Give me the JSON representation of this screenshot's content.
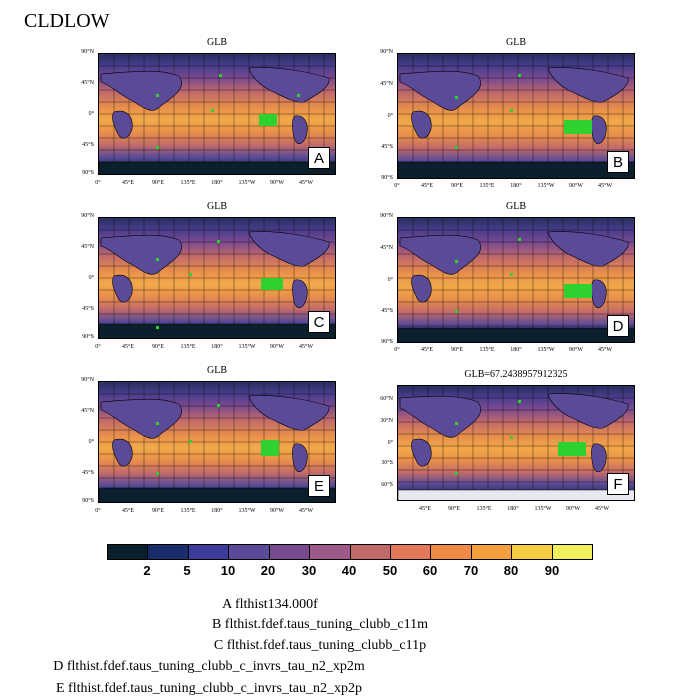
{
  "title": "CLDLOW",
  "panels": [
    {
      "title": "GLB",
      "letter": "A",
      "lat_labels": [
        "90°N",
        "45°N",
        "0°",
        "45°S",
        "90°S"
      ],
      "lon_labels": [
        "0°",
        "45°E",
        "90°E",
        "135°E",
        "180°",
        "135°W",
        "90°W",
        "45°W"
      ]
    },
    {
      "title": "GLB",
      "letter": "B",
      "lat_labels": [
        "90°N",
        "45°N",
        "0°",
        "45°S",
        "90°S"
      ],
      "lon_labels": [
        "0°",
        "45°E",
        "90°E",
        "135°E",
        "180°",
        "135°W",
        "90°W",
        "45°W"
      ]
    },
    {
      "title": "GLB",
      "letter": "C",
      "lat_labels": [
        "90°N",
        "45°N",
        "0°",
        "45°S",
        "90°S"
      ],
      "lon_labels": [
        "0°",
        "45°E",
        "90°E",
        "135°E",
        "180°",
        "135°W",
        "90°W",
        "45°W"
      ]
    },
    {
      "title": "GLB",
      "letter": "D",
      "lat_labels": [
        "90°N",
        "45°N",
        "0°",
        "45°S",
        "90°S"
      ],
      "lon_labels": [
        "0°",
        "45°E",
        "90°E",
        "135°E",
        "180°",
        "135°W",
        "90°W",
        "45°W"
      ]
    },
    {
      "title": "GLB",
      "letter": "E",
      "lat_labels": [
        "90°N",
        "45°N",
        "0°",
        "45°S",
        "90°S"
      ],
      "lon_labels": [
        "0°",
        "45°E",
        "90°E",
        "135°E",
        "180°",
        "135°W",
        "90°W",
        "45°W"
      ]
    },
    {
      "title": "GLB=67.2438957912325",
      "letter": "F",
      "lat_labels": [
        "60°N",
        "30°N",
        "0°",
        "30°S",
        "60°S"
      ],
      "lon_labels": [
        "45°E",
        "90°E",
        "135°E",
        "180°",
        "135°W",
        "90°W",
        "45°W"
      ]
    }
  ],
  "colorbar": {
    "colors": [
      "#0c1f2c",
      "#1a2d6b",
      "#3b3c9a",
      "#5a4a97",
      "#7a4a8f",
      "#9d5a88",
      "#c26a6a",
      "#e27a5a",
      "#f08a48",
      "#f5a040",
      "#f5cc44",
      "#eef060"
    ],
    "labels": [
      "2",
      "5",
      "10",
      "20",
      "30",
      "40",
      "50",
      "60",
      "70",
      "80",
      "90"
    ]
  },
  "legend": [
    "A  flthist134.000f",
    "B  flthist.fdef.taus_tuning_clubb_c11m",
    "C  flthist.fdef.taus_tuning_clubb_c11p",
    "D  flthist.fdef.taus_tuning_clubb_c_invrs_tau_n2_xp2m",
    "E  flthist.fdef.taus_tuning_clubb_c_invrs_tau_n2_xp2p"
  ]
}
